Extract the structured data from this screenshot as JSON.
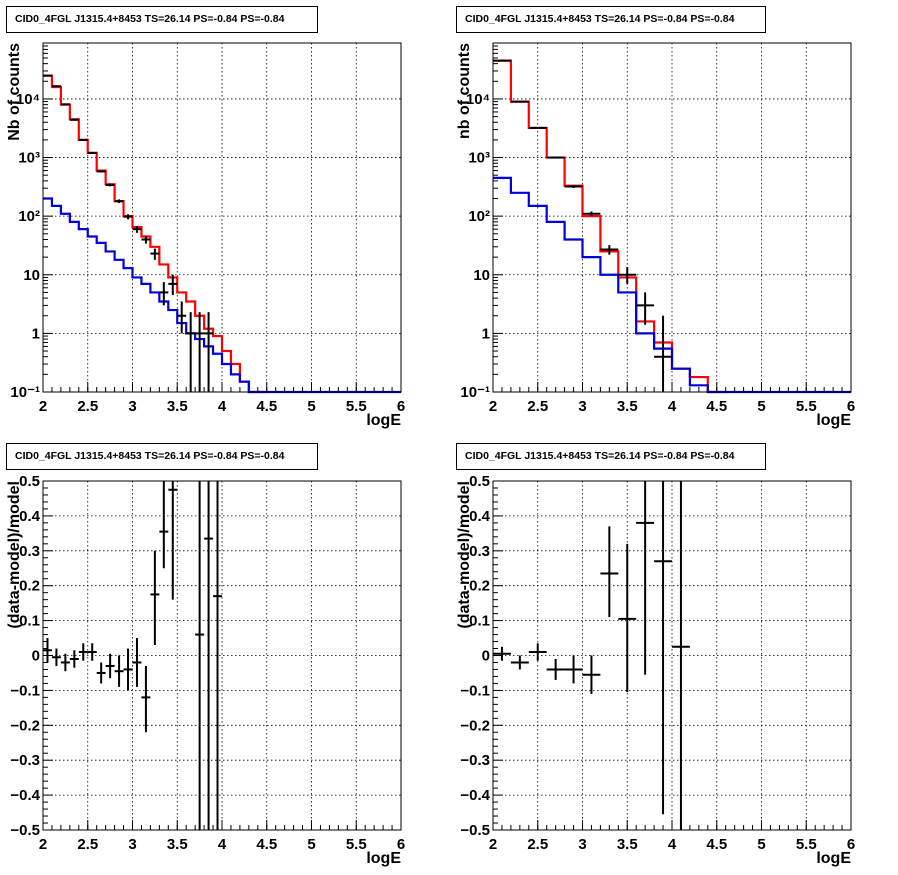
{
  "chart_data": [
    {
      "type": "histogram",
      "title": "CID0_4FGL J1315.4+8453 TS=26.14 PS=-0.84 PS=-0.84",
      "xlabel": "logE",
      "ylabel": "Nb of counts",
      "xlim": [
        2,
        6
      ],
      "ylim": [
        0.1,
        90000
      ],
      "yscale": "log",
      "grid": true,
      "x_ticks": [
        "2",
        "2.5",
        "3",
        "3.5",
        "4",
        "4.5",
        "5",
        "5.5",
        "6"
      ],
      "y_ticks": [
        "10⁻¹",
        "1",
        "10",
        "10²",
        "10³",
        "10⁴"
      ],
      "y_tick_values": [
        0.1,
        1,
        10,
        100,
        1000,
        10000
      ],
      "bin_width": 0.1,
      "series": [
        {
          "color": "#ff0000",
          "edges": [
            2,
            2.1,
            2.2,
            2.3,
            2.4,
            2.5,
            2.6,
            2.7,
            2.8,
            2.9,
            3,
            3.1,
            3.2,
            3.3,
            3.4,
            3.5,
            3.6,
            3.7,
            3.8,
            3.9,
            4,
            4.1,
            4.2,
            4.3,
            4.4,
            4.5
          ],
          "values": [
            25000,
            16000,
            8000,
            4500,
            2000,
            1200,
            600,
            350,
            180,
            100,
            65,
            45,
            30,
            15,
            9,
            5,
            3.5,
            2,
            1.2,
            0.9,
            0.5,
            0.3,
            0.15,
            0.1,
            0.1
          ]
        },
        {
          "color": "#0000dd",
          "edges": [
            2,
            2.1,
            2.2,
            2.3,
            2.4,
            2.5,
            2.6,
            2.7,
            2.8,
            2.9,
            3,
            3.1,
            3.2,
            3.3,
            3.4,
            3.5,
            3.6,
            3.7,
            3.8,
            3.9,
            4,
            4.1,
            4.2,
            4.3,
            4.4,
            6
          ],
          "values": [
            200,
            150,
            110,
            80,
            60,
            45,
            35,
            25,
            18,
            13,
            9,
            7,
            5,
            3.5,
            2.5,
            1.5,
            1,
            0.8,
            0.6,
            0.45,
            0.3,
            0.2,
            0.15,
            0.1,
            0.1
          ]
        }
      ],
      "points": [
        {
          "x": 2.05,
          "y": 25000,
          "xerr": 0.05,
          "ylo": 24800,
          "yhi": 25200
        },
        {
          "x": 2.15,
          "y": 16500,
          "xerr": 0.05,
          "ylo": 16300,
          "yhi": 16700
        },
        {
          "x": 2.25,
          "y": 8100,
          "xerr": 0.05,
          "ylo": 8000,
          "yhi": 8200
        },
        {
          "x": 2.35,
          "y": 4400,
          "xerr": 0.05,
          "ylo": 4330,
          "yhi": 4470
        },
        {
          "x": 2.45,
          "y": 2000,
          "xerr": 0.05,
          "ylo": 1955,
          "yhi": 2045
        },
        {
          "x": 2.55,
          "y": 1200,
          "xerr": 0.05,
          "ylo": 1165,
          "yhi": 1235
        },
        {
          "x": 2.65,
          "y": 580,
          "xerr": 0.05,
          "ylo": 556,
          "yhi": 604
        },
        {
          "x": 2.75,
          "y": 340,
          "xerr": 0.05,
          "ylo": 322,
          "yhi": 358
        },
        {
          "x": 2.85,
          "y": 180,
          "xerr": 0.05,
          "ylo": 167,
          "yhi": 193
        },
        {
          "x": 2.95,
          "y": 98,
          "xerr": 0.05,
          "ylo": 88,
          "yhi": 108
        },
        {
          "x": 3.05,
          "y": 60,
          "xerr": 0.05,
          "ylo": 52,
          "yhi": 68
        },
        {
          "x": 3.15,
          "y": 40,
          "xerr": 0.05,
          "ylo": 34,
          "yhi": 46
        },
        {
          "x": 3.25,
          "y": 23,
          "xerr": 0.05,
          "ylo": 18,
          "yhi": 28
        },
        {
          "x": 3.35,
          "y": 5,
          "xerr": 0.05,
          "ylo": 3,
          "yhi": 7.5
        },
        {
          "x": 3.45,
          "y": 7,
          "xerr": 0.05,
          "ylo": 4.5,
          "yhi": 10
        },
        {
          "x": 3.55,
          "y": 2,
          "xerr": 0.05,
          "ylo": 1,
          "yhi": 3.5
        },
        {
          "x": 3.65,
          "y": 1,
          "xerr": 0.05,
          "ylo": 0.1,
          "yhi": 2.3
        },
        {
          "x": 3.75,
          "y": 1,
          "xerr": 0.05,
          "ylo": 0.1,
          "yhi": 2.3
        },
        {
          "x": 3.85,
          "y": 1,
          "xerr": 0.05,
          "ylo": 0.1,
          "yhi": 2.3
        }
      ]
    },
    {
      "type": "histogram",
      "title": "CID0_4FGL J1315.4+8453 TS=26.14 PS=-0.84 PS=-0.84",
      "xlabel": "logE",
      "ylabel": "nb of counts",
      "xlim": [
        2,
        6
      ],
      "ylim": [
        0.1,
        90000
      ],
      "yscale": "log",
      "grid": true,
      "x_ticks": [
        "2",
        "2.5",
        "3",
        "3.5",
        "4",
        "4.5",
        "5",
        "5.5",
        "6"
      ],
      "y_ticks": [
        "10⁻¹",
        "1",
        "10",
        "10²",
        "10³",
        "10⁴"
      ],
      "y_tick_values": [
        0.1,
        1,
        10,
        100,
        1000,
        10000
      ],
      "bin_width": 0.2,
      "series": [
        {
          "color": "#ff0000",
          "edges": [
            2,
            2.2,
            2.4,
            2.6,
            2.8,
            3,
            3.2,
            3.4,
            3.6,
            3.8,
            4,
            4.2,
            4.4,
            4.6
          ],
          "values": [
            45000,
            9000,
            3200,
            1000,
            330,
            100,
            25,
            9,
            1.6,
            0.7,
            0.25,
            0.18,
            0.1
          ]
        },
        {
          "color": "#0000dd",
          "edges": [
            2,
            2.2,
            2.4,
            2.6,
            2.8,
            3,
            3.2,
            3.4,
            3.6,
            3.8,
            4,
            4.2,
            4.4,
            6
          ],
          "values": [
            450,
            250,
            150,
            80,
            40,
            20,
            10,
            5,
            1,
            0.55,
            0.25,
            0.13,
            0.1
          ]
        }
      ],
      "points": [
        {
          "x": 2.1,
          "y": 45000,
          "xerr": 0.1,
          "ylo": 44800,
          "yhi": 45200
        },
        {
          "x": 2.3,
          "y": 9000,
          "xerr": 0.1,
          "ylo": 8900,
          "yhi": 9100
        },
        {
          "x": 2.5,
          "y": 3200,
          "xerr": 0.1,
          "ylo": 3140,
          "yhi": 3260
        },
        {
          "x": 2.7,
          "y": 1000,
          "xerr": 0.1,
          "ylo": 970,
          "yhi": 1030
        },
        {
          "x": 2.9,
          "y": 320,
          "xerr": 0.1,
          "ylo": 302,
          "yhi": 338
        },
        {
          "x": 3.1,
          "y": 110,
          "xerr": 0.1,
          "ylo": 100,
          "yhi": 120
        },
        {
          "x": 3.3,
          "y": 27,
          "xerr": 0.1,
          "ylo": 22,
          "yhi": 32
        },
        {
          "x": 3.5,
          "y": 10,
          "xerr": 0.1,
          "ylo": 7,
          "yhi": 13.5
        },
        {
          "x": 3.7,
          "y": 3,
          "xerr": 0.1,
          "ylo": 1.4,
          "yhi": 5
        },
        {
          "x": 3.9,
          "y": 0.4,
          "xerr": 0.1,
          "ylo": 0.1,
          "yhi": 2
        }
      ]
    },
    {
      "type": "scatter",
      "title": "CID0_4FGL J1315.4+8453 TS=26.14 PS=-0.84 PS=-0.84",
      "xlabel": "logE",
      "ylabel": "(data-model)/model",
      "xlim": [
        2,
        6
      ],
      "ylim": [
        -0.5,
        0.5
      ],
      "yscale": "linear",
      "grid": true,
      "x_ticks": [
        "2",
        "2.5",
        "3",
        "3.5",
        "4",
        "4.5",
        "5",
        "5.5",
        "6"
      ],
      "y_ticks": [
        "−0.5",
        "−0.4",
        "−0.3",
        "−0.2",
        "−0.1",
        "0",
        "0.1",
        "0.2",
        "0.3",
        "0.4",
        "0.5"
      ],
      "y_tick_values": [
        -0.5,
        -0.4,
        -0.3,
        -0.2,
        -0.1,
        0,
        0.1,
        0.2,
        0.3,
        0.4,
        0.5
      ],
      "points": [
        {
          "x": 2.05,
          "y": 0.015,
          "xerr": 0.05,
          "ylo": -0.02,
          "yhi": 0.05
        },
        {
          "x": 2.15,
          "y": -0.005,
          "xerr": 0.05,
          "ylo": -0.03,
          "yhi": 0.02
        },
        {
          "x": 2.25,
          "y": -0.02,
          "xerr": 0.05,
          "ylo": -0.045,
          "yhi": 0.005
        },
        {
          "x": 2.35,
          "y": -0.01,
          "xerr": 0.05,
          "ylo": -0.035,
          "yhi": 0.015
        },
        {
          "x": 2.45,
          "y": 0.01,
          "xerr": 0.05,
          "ylo": -0.015,
          "yhi": 0.035
        },
        {
          "x": 2.55,
          "y": 0.01,
          "xerr": 0.05,
          "ylo": -0.015,
          "yhi": 0.035
        },
        {
          "x": 2.65,
          "y": -0.05,
          "xerr": 0.05,
          "ylo": -0.08,
          "yhi": -0.02
        },
        {
          "x": 2.75,
          "y": -0.03,
          "xerr": 0.05,
          "ylo": -0.065,
          "yhi": 0.005
        },
        {
          "x": 2.85,
          "y": -0.045,
          "xerr": 0.05,
          "ylo": -0.09,
          "yhi": 0.0
        },
        {
          "x": 2.95,
          "y": -0.04,
          "xerr": 0.05,
          "ylo": -0.1,
          "yhi": 0.02
        },
        {
          "x": 3.05,
          "y": -0.02,
          "xerr": 0.05,
          "ylo": -0.09,
          "yhi": 0.05
        },
        {
          "x": 3.15,
          "y": -0.12,
          "xerr": 0.05,
          "ylo": -0.22,
          "yhi": -0.03
        },
        {
          "x": 3.25,
          "y": 0.175,
          "xerr": 0.05,
          "ylo": 0.03,
          "yhi": 0.3
        },
        {
          "x": 3.35,
          "y": 0.355,
          "xerr": 0.05,
          "ylo": 0.25,
          "yhi": 0.5
        },
        {
          "x": 3.45,
          "y": 0.475,
          "xerr": 0.05,
          "ylo": 0.16,
          "yhi": 0.5
        },
        {
          "x": 3.75,
          "y": 0.06,
          "xerr": 0.05,
          "ylo": -0.5,
          "yhi": 0.5
        },
        {
          "x": 3.85,
          "y": 0.335,
          "xerr": 0.05,
          "ylo": -0.5,
          "yhi": 0.5
        },
        {
          "x": 3.95,
          "y": 0.17,
          "xerr": 0.05,
          "ylo": -0.5,
          "yhi": 0.5
        }
      ]
    },
    {
      "type": "scatter",
      "title": "CID0_4FGL J1315.4+8453 TS=26.14 PS=-0.84 PS=-0.84",
      "xlabel": "logE",
      "ylabel": "(data-model)/model",
      "xlim": [
        2,
        6
      ],
      "ylim": [
        -0.5,
        0.5
      ],
      "yscale": "linear",
      "grid": true,
      "x_ticks": [
        "2",
        "2.5",
        "3",
        "3.5",
        "4",
        "4.5",
        "5",
        "5.5",
        "6"
      ],
      "y_ticks": [
        "−0.5",
        "−0.4",
        "−0.3",
        "−0.2",
        "−0.1",
        "0",
        "0.1",
        "0.2",
        "0.3",
        "0.4",
        "0.5"
      ],
      "y_tick_values": [
        -0.5,
        -0.4,
        -0.3,
        -0.2,
        -0.1,
        0,
        0.1,
        0.2,
        0.3,
        0.4,
        0.5
      ],
      "points": [
        {
          "x": 2.1,
          "y": 0.005,
          "xerr": 0.1,
          "ylo": -0.015,
          "yhi": 0.025
        },
        {
          "x": 2.3,
          "y": -0.02,
          "xerr": 0.1,
          "ylo": -0.04,
          "yhi": 0.0
        },
        {
          "x": 2.5,
          "y": 0.01,
          "xerr": 0.1,
          "ylo": -0.015,
          "yhi": 0.035
        },
        {
          "x": 2.7,
          "y": -0.04,
          "xerr": 0.1,
          "ylo": -0.07,
          "yhi": -0.01
        },
        {
          "x": 2.9,
          "y": -0.04,
          "xerr": 0.1,
          "ylo": -0.08,
          "yhi": 0.0
        },
        {
          "x": 3.1,
          "y": -0.055,
          "xerr": 0.1,
          "ylo": -0.11,
          "yhi": 0.0
        },
        {
          "x": 3.3,
          "y": 0.235,
          "xerr": 0.1,
          "ylo": 0.11,
          "yhi": 0.37
        },
        {
          "x": 3.5,
          "y": 0.105,
          "xerr": 0.1,
          "ylo": -0.105,
          "yhi": 0.32
        },
        {
          "x": 3.7,
          "y": 0.38,
          "xerr": 0.1,
          "ylo": -0.055,
          "yhi": 0.5
        },
        {
          "x": 3.9,
          "y": 0.27,
          "xerr": 0.1,
          "ylo": -0.455,
          "yhi": 0.5
        },
        {
          "x": 4.1,
          "y": 0.025,
          "xerr": 0.1,
          "ylo": -0.5,
          "yhi": 0.5
        }
      ]
    }
  ]
}
